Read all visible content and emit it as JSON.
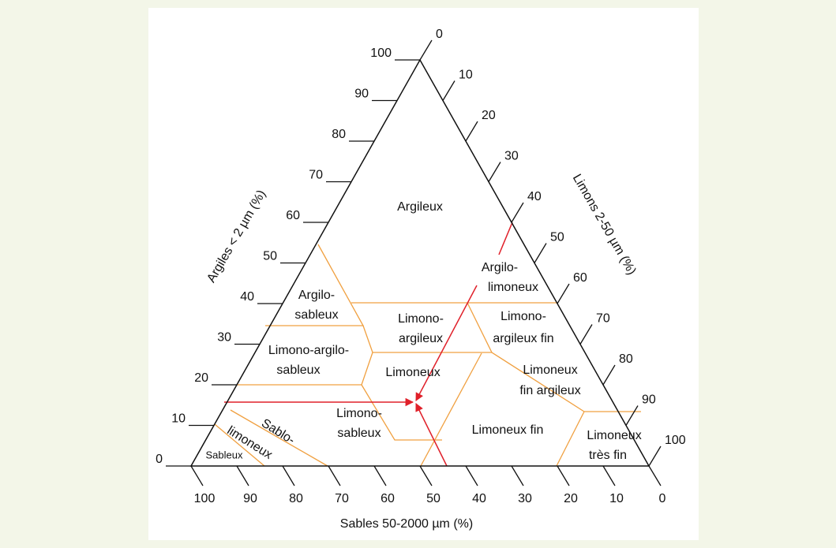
{
  "axes": {
    "clay": {
      "title": "Argiles < 2 µm (%)",
      "ticks": [
        0,
        10,
        20,
        30,
        40,
        50,
        60,
        70,
        80,
        90,
        100
      ]
    },
    "silt": {
      "title": "Limons 2-50 µm (%)",
      "ticks": [
        0,
        10,
        20,
        30,
        40,
        50,
        60,
        70,
        80,
        90,
        100
      ]
    },
    "sand": {
      "title": "Sables 50-2000 µm (%)",
      "ticks": [
        100,
        90,
        80,
        70,
        60,
        50,
        40,
        30,
        20,
        10,
        0
      ]
    }
  },
  "regions": [
    {
      "lines": [
        "Argileux"
      ]
    },
    {
      "lines": [
        "Argilo-",
        "sableux"
      ]
    },
    {
      "lines": [
        "Argilo-",
        "limoneux"
      ]
    },
    {
      "lines": [
        "Limono-",
        "argileux"
      ]
    },
    {
      "lines": [
        "Limono-",
        "argileux fin"
      ]
    },
    {
      "lines": [
        "Limono-argilo-",
        "sableux"
      ]
    },
    {
      "lines": [
        "Limoneux"
      ]
    },
    {
      "lines": [
        "Limoneux",
        "fin argileux"
      ]
    },
    {
      "lines": [
        "Limono-",
        "sableux"
      ]
    },
    {
      "lines": [
        "Limoneux fin"
      ]
    },
    {
      "lines": [
        "Limoneux",
        "très fin"
      ]
    },
    {
      "lines": [
        "Sableux"
      ]
    },
    {
      "lines": [
        "Sablo-",
        "limoneux"
      ]
    }
  ]
}
